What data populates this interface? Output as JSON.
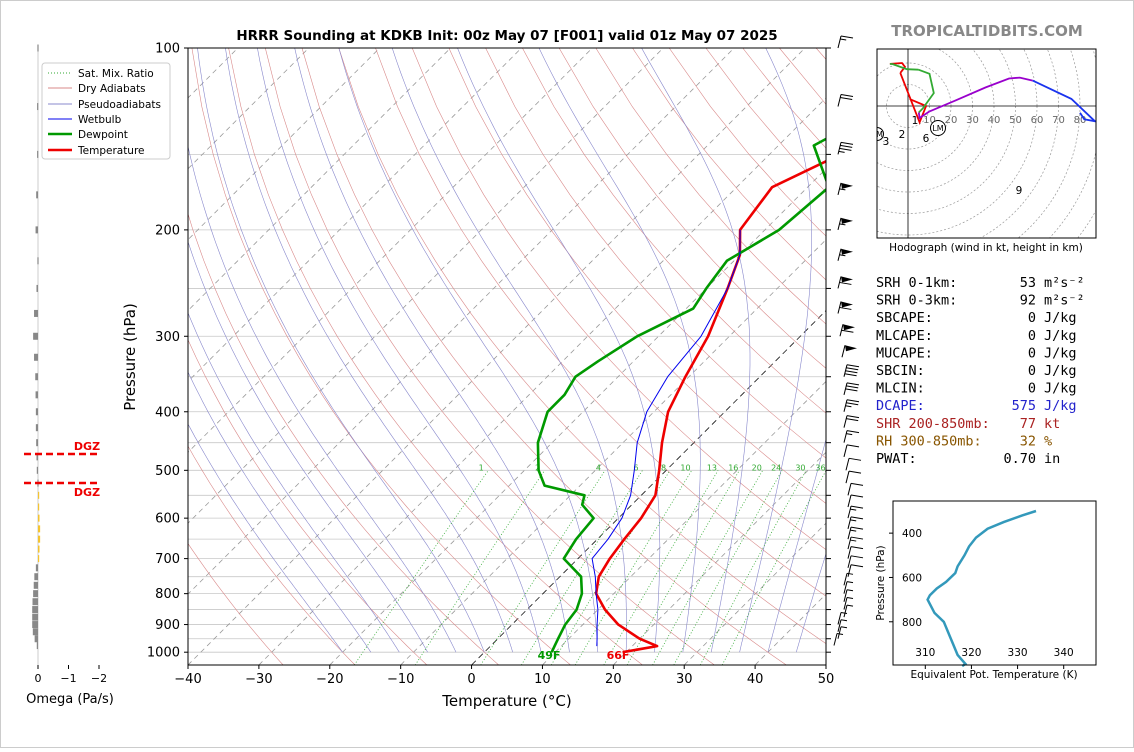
{
  "title": "HRRR Sounding at KDKB Init: 00z May 07 [F001] valid 01z May 07 2025",
  "watermark": "TROPICALTIDBITS.COM",
  "skewt": {
    "xlabel": "Temperature (°C)",
    "ylabel": "Pressure (hPa)",
    "xlim": [
      -40,
      50
    ],
    "ylim": [
      1050,
      100
    ],
    "x_ticks": [
      "−40",
      "−30",
      "−20",
      "−10",
      "0",
      "10",
      "20",
      "30",
      "40",
      "50"
    ],
    "y_ticks": [
      "100",
      "200",
      "300",
      "400",
      "500",
      "600",
      "700",
      "800",
      "900",
      "1000"
    ],
    "legend": [
      "Sat. Mix. Ratio",
      "Dry Adiabats",
      "Pseudoadiabats",
      "Wetbulb",
      "Dewpoint",
      "Temperature"
    ],
    "mixing_ratio_labels": [
      "1",
      "2",
      "4",
      "6",
      "8",
      "10",
      "13",
      "16",
      "20",
      "24",
      "30",
      "36"
    ],
    "surface_dewpoint_label": "49F",
    "surface_temperature_label": "66F",
    "colors": {
      "temperature": "#ee0000",
      "dewpoint": "#009900",
      "wetbulb": "#0000ee",
      "dry": "#d98a8a",
      "moist": "#8888cc",
      "mix": "#33aa33"
    }
  },
  "chart_data": [
    {
      "type": "line",
      "title": "HRRR Sounding at KDKB Init: 00z May 07 [F001] valid 01z May 07 2025",
      "xlabel": "Temperature (°C)",
      "ylabel": "Pressure (hPa)",
      "xlim": [
        -40,
        50
      ],
      "ylim": [
        1050,
        100
      ],
      "grid": true,
      "legend_position": "top-left",
      "series": [
        {
          "name": "Temperature",
          "points": [
            [
              1000,
              19.5
            ],
            [
              977,
              23.5
            ],
            [
              950,
              20
            ],
            [
              900,
              15
            ],
            [
              850,
              11
            ],
            [
              800,
              7.5
            ],
            [
              750,
              5.5
            ],
            [
              700,
              4.5
            ],
            [
              650,
              3.8
            ],
            [
              600,
              3.2
            ],
            [
              550,
              2
            ],
            [
              500,
              -1
            ],
            [
              450,
              -4.5
            ],
            [
              400,
              -8
            ],
            [
              350,
              -10.5
            ],
            [
              300,
              -13
            ],
            [
              250,
              -17
            ],
            [
              220,
              -20
            ],
            [
              200,
              -23.5
            ],
            [
              170,
              -25
            ],
            [
              150,
              -20
            ],
            [
              100,
              -13
            ]
          ]
        },
        {
          "name": "Dewpoint",
          "points": [
            [
              1000,
              9.5
            ],
            [
              975,
              9
            ],
            [
              950,
              8.5
            ],
            [
              900,
              7.5
            ],
            [
              850,
              7
            ],
            [
              800,
              5.5
            ],
            [
              750,
              3
            ],
            [
              700,
              -2
            ],
            [
              650,
              -3
            ],
            [
              600,
              -3.5
            ],
            [
              570,
              -7
            ],
            [
              550,
              -8
            ],
            [
              530,
              -15
            ],
            [
              500,
              -18
            ],
            [
              450,
              -22
            ],
            [
              400,
              -25
            ],
            [
              375,
              -25
            ],
            [
              350,
              -26
            ],
            [
              330,
              -25
            ],
            [
              300,
              -23
            ],
            [
              270,
              -19
            ],
            [
              250,
              -20
            ],
            [
              225,
              -21
            ],
            [
              200,
              -18
            ],
            [
              170,
              -17
            ],
            [
              145,
              -25
            ],
            [
              120,
              -19
            ],
            [
              100,
              -15
            ]
          ]
        },
        {
          "name": "Wetbulb",
          "points": [
            [
              977,
              15
            ],
            [
              950,
              14
            ],
            [
              900,
              12
            ],
            [
              850,
              10
            ],
            [
              800,
              7.5
            ],
            [
              750,
              5
            ],
            [
              700,
              2
            ],
            [
              650,
              1.5
            ],
            [
              600,
              0.5
            ],
            [
              550,
              -1.5
            ],
            [
              500,
              -4.5
            ],
            [
              450,
              -8
            ],
            [
              400,
              -11
            ],
            [
              350,
              -13
            ],
            [
              300,
              -14
            ],
            [
              250,
              -17
            ],
            [
              220,
              -20
            ],
            [
              200,
              -23.5
            ]
          ]
        }
      ]
    },
    {
      "type": "bar",
      "title": "",
      "xlabel": "Omega (Pa/s)",
      "ylabel": "",
      "xlim": [
        0.5,
        -2
      ],
      "x_ticks": [
        "0",
        "−1",
        "−2"
      ],
      "dgz_label": "DGZ",
      "dgz_bounds_hpa": [
        470,
        525
      ],
      "values": [
        [
          100,
          0.02
        ],
        [
          125,
          0.03
        ],
        [
          150,
          0.03
        ],
        [
          175,
          0.06
        ],
        [
          200,
          0.08
        ],
        [
          225,
          0.02
        ],
        [
          250,
          0.05
        ],
        [
          275,
          0.13
        ],
        [
          300,
          0.16
        ],
        [
          325,
          0.13
        ],
        [
          350,
          0.09
        ],
        [
          375,
          0.08
        ],
        [
          400,
          0.07
        ],
        [
          425,
          0.07
        ],
        [
          450,
          0.06
        ],
        [
          475,
          0.05
        ],
        [
          500,
          0.04
        ],
        [
          525,
          0.02
        ],
        [
          550,
          -0.01
        ],
        [
          575,
          -0.02
        ],
        [
          600,
          -0.05
        ],
        [
          625,
          -0.07
        ],
        [
          650,
          -0.07
        ],
        [
          675,
          -0.05
        ],
        [
          700,
          -0.03
        ],
        [
          725,
          0.07
        ],
        [
          750,
          0.12
        ],
        [
          775,
          0.14
        ],
        [
          800,
          0.16
        ],
        [
          825,
          0.18
        ],
        [
          850,
          0.19
        ],
        [
          875,
          0.19
        ],
        [
          900,
          0.19
        ],
        [
          925,
          0.17
        ],
        [
          950,
          0.11
        ],
        [
          975,
          0.04
        ]
      ]
    },
    {
      "type": "line",
      "title": "Hodograph (wind in kt, height in km)",
      "xlabel": "",
      "ylabel": "",
      "rings": [
        "10",
        "20",
        "30",
        "40",
        "50",
        "60",
        "70",
        "80"
      ],
      "height_labels": [
        "1",
        "2",
        "3",
        "6",
        "9"
      ],
      "storm_markers": [
        "RM",
        "LM"
      ],
      "points": [
        [
          0.8,
          -3.2
        ],
        [
          8.4,
          0
        ],
        [
          5.4,
          7.6
        ],
        [
          -3.6,
          -15.4
        ],
        [
          -1.4,
          -18.2
        ],
        [
          -2.8,
          -20
        ],
        [
          -8.4,
          -19.6
        ],
        [
          -7.1,
          -19.5
        ],
        [
          -0.5,
          -17.1
        ],
        [
          4.9,
          -16.9
        ],
        [
          10,
          -15
        ],
        [
          12,
          -6
        ],
        [
          7,
          1
        ],
        [
          5,
          3
        ],
        [
          5.4,
          5.6
        ],
        [
          10,
          2.5
        ],
        [
          22,
          -2.5
        ],
        [
          36,
          -8.6
        ],
        [
          47,
          -12.8
        ],
        [
          52,
          -13.2
        ],
        [
          58,
          -11.8
        ],
        [
          76,
          -3.3
        ],
        [
          87,
          7.1
        ],
        [
          82,
          6.2
        ],
        [
          80,
          3.1
        ]
      ],
      "segment_colors": [
        "#ee0000",
        "#33aa33",
        "#33aa33",
        "#9900cc",
        "#1a33ee"
      ]
    },
    {
      "type": "line",
      "title": "",
      "xlabel": "Equivalent Pot. Temperature (K)",
      "ylabel": "Pressure (hPa)",
      "xlim": [
        303,
        347
      ],
      "ylim": [
        995,
        255
      ],
      "x_ticks": [
        "310",
        "320",
        "330",
        "340"
      ],
      "y_ticks": [
        "400",
        "600",
        "800"
      ],
      "points": [
        [
          1000,
          318
        ],
        [
          990,
          318.7
        ],
        [
          950,
          317
        ],
        [
          900,
          316
        ],
        [
          850,
          315
        ],
        [
          800,
          314
        ],
        [
          760,
          312
        ],
        [
          720,
          311
        ],
        [
          700,
          310.5
        ],
        [
          680,
          311
        ],
        [
          650,
          312.5
        ],
        [
          620,
          314.5
        ],
        [
          580,
          316.5
        ],
        [
          550,
          317
        ],
        [
          500,
          318.5
        ],
        [
          460,
          319.5
        ],
        [
          420,
          321
        ],
        [
          380,
          323.5
        ],
        [
          350,
          327
        ],
        [
          320,
          331
        ],
        [
          300,
          334
        ]
      ]
    }
  ],
  "wind_barbs": [
    [
      100,
      0,
      15,
      "A"
    ],
    [
      125,
      0,
      20,
      "A"
    ],
    [
      150,
      0,
      35,
      "A"
    ],
    [
      175,
      0,
      55,
      "B"
    ],
    [
      200,
      0,
      55,
      "B"
    ],
    [
      225,
      0,
      55,
      "B"
    ],
    [
      250,
      0,
      60,
      "B"
    ],
    [
      275,
      0,
      60,
      "B"
    ],
    [
      300,
      0,
      60,
      "C"
    ],
    [
      325,
      0,
      50,
      "D"
    ],
    [
      350,
      0,
      40,
      "E"
    ],
    [
      375,
      0,
      30,
      "E"
    ],
    [
      400,
      0,
      25,
      "E"
    ],
    [
      425,
      0,
      20,
      "E"
    ],
    [
      450,
      0,
      15,
      "E"
    ],
    [
      475,
      0,
      10,
      "E"
    ],
    [
      500,
      0,
      10,
      "F"
    ],
    [
      525,
      0,
      10,
      "F"
    ],
    [
      550,
      0,
      10,
      "G"
    ],
    [
      575,
      0,
      10,
      "G"
    ],
    [
      600,
      0,
      15,
      "G"
    ],
    [
      625,
      0,
      15,
      "G"
    ],
    [
      650,
      0,
      15,
      "G"
    ],
    [
      675,
      0,
      15,
      "G"
    ],
    [
      700,
      0,
      10,
      "G"
    ],
    [
      725,
      0,
      10,
      "G"
    ],
    [
      750,
      0,
      10,
      "G"
    ],
    [
      775,
      0,
      5,
      "H"
    ],
    [
      800,
      0,
      5,
      "H"
    ],
    [
      825,
      0,
      5,
      "H"
    ],
    [
      850,
      0,
      5,
      "H"
    ],
    [
      875,
      0,
      5,
      "H"
    ],
    [
      900,
      0,
      5,
      "I"
    ],
    [
      925,
      0,
      5,
      "I"
    ],
    [
      950,
      0,
      5,
      "I"
    ],
    [
      975,
      0,
      5,
      "J"
    ]
  ],
  "stats": {
    "rows": [
      {
        "label": "SRH 0-1km:",
        "value": "53",
        "unit": "m²s⁻²",
        "color": "#000000"
      },
      {
        "label": "SRH 0-3km:",
        "value": "92",
        "unit": "m²s⁻²",
        "color": "#000000"
      },
      {
        "label": "SBCAPE:",
        "value": "0",
        "unit": "J/kg",
        "color": "#000000"
      },
      {
        "label": "MLCAPE:",
        "value": "0",
        "unit": "J/kg",
        "color": "#000000"
      },
      {
        "label": "MUCAPE:",
        "value": "0",
        "unit": "J/kg",
        "color": "#000000"
      },
      {
        "label": "SBCIN:",
        "value": "0",
        "unit": "J/kg",
        "color": "#000000"
      },
      {
        "label": "MLCIN:",
        "value": "0",
        "unit": "J/kg",
        "color": "#000000"
      },
      {
        "label": "DCAPE:",
        "value": "575",
        "unit": "J/kg",
        "color": "#2222cc"
      },
      {
        "label": "SHR 200-850mb:",
        "value": "77",
        "unit": "kt",
        "color": "#aa2222"
      },
      {
        "label": "RH 300-850mb:",
        "value": "32",
        "unit": "%",
        "color": "#885500"
      },
      {
        "label": "PWAT:",
        "value": "0.70",
        "unit": "in",
        "color": "#000000"
      }
    ]
  }
}
